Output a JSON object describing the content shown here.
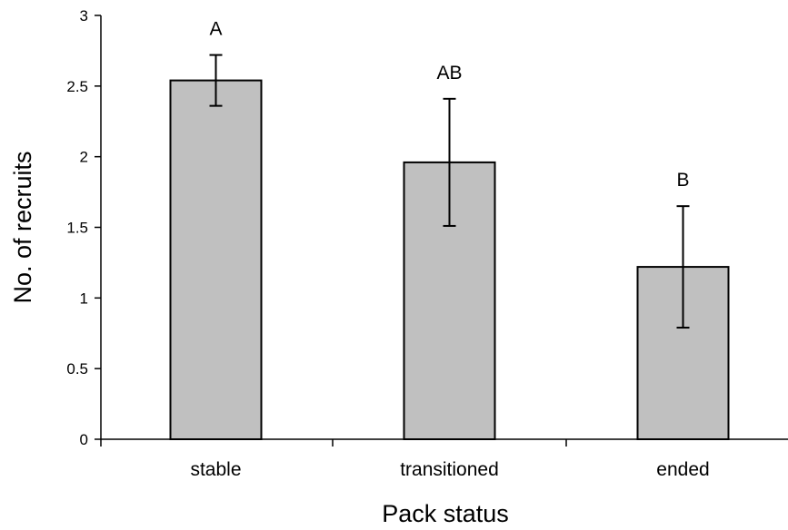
{
  "chart_data": {
    "type": "bar",
    "categories": [
      "stable",
      "transitioned",
      "ended"
    ],
    "values": [
      2.54,
      1.96,
      1.22
    ],
    "error": [
      0.18,
      0.45,
      0.43
    ],
    "significance_labels": [
      "A",
      "AB",
      "B"
    ],
    "xlabel": "Pack status",
    "ylabel": "No. of recruits",
    "ylim": [
      0,
      3
    ],
    "yticks": [
      0,
      0.5,
      1,
      1.5,
      2,
      2.5,
      3
    ],
    "ytick_labels": [
      "0",
      "0.5",
      "1",
      "1.5",
      "2",
      "2.5",
      "3"
    ],
    "grid": false,
    "bar_color": "#c0c0c0",
    "edge_color": "#000000"
  }
}
